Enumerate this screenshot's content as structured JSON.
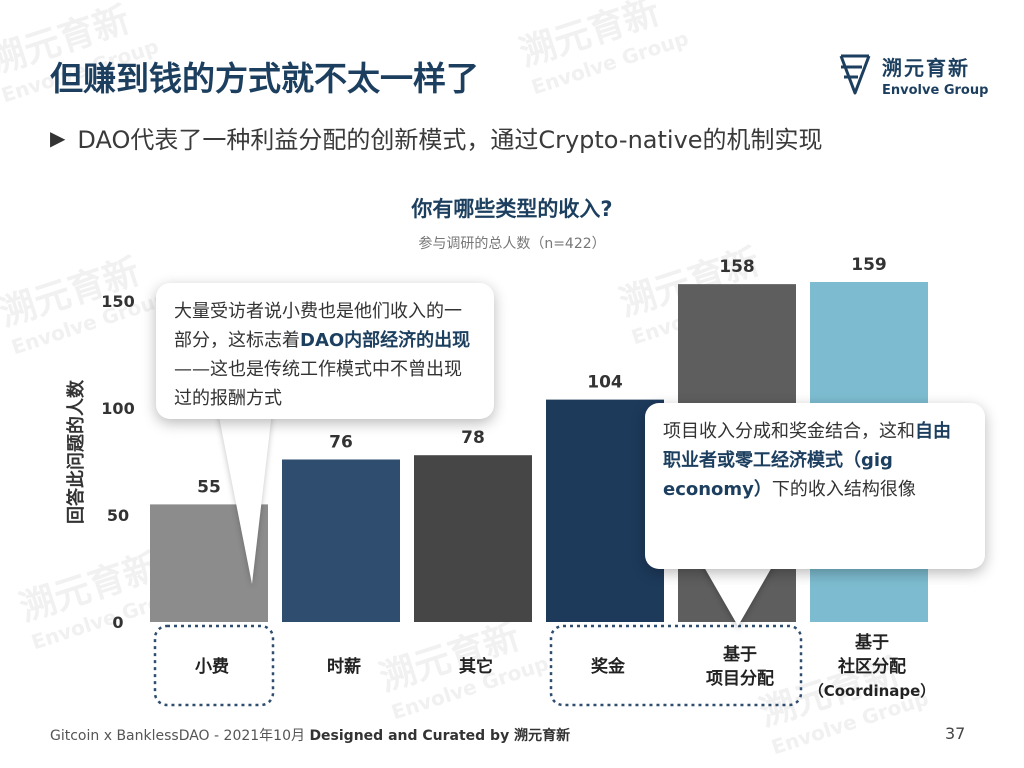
{
  "slide": {
    "title": "但赚到钱的方式就不太一样了",
    "subtitle": "DAO代表了一种利益分配的创新模式，通过Crypto-native的机制实现",
    "page_number": "37"
  },
  "logo": {
    "cn": "溯元育新",
    "en": "Envolve Group",
    "color": "#1d3f5f"
  },
  "watermark": {
    "cn": "溯元育新",
    "en": "Envolve Group"
  },
  "callouts": [
    {
      "parts": [
        {
          "text": "大量受访者说小费也是他们收入的一部分，这标志着",
          "bold": false
        },
        {
          "text": "DAO内部经济的出现",
          "bold": true
        },
        {
          "text": "——这也是传统工作模式中不曾出现过的报酬方式",
          "bold": false
        }
      ]
    },
    {
      "parts": [
        {
          "text": "项目收入分成和奖金结合，这和",
          "bold": false
        },
        {
          "text": "自由职业者或零工经济模式（gig economy）",
          "bold": true
        },
        {
          "text": "下的收入结构很像",
          "bold": false
        }
      ]
    }
  ],
  "footer": {
    "prefix": "Gitcoin x BanklessDAO - 2021年10月 ",
    "bold": "Designed and Curated by 溯元育新"
  },
  "chart_data": {
    "type": "bar",
    "title": "你有哪些类型的收入?",
    "subtitle": "参与调研的总人数（n=422）",
    "ylabel": "回答此问题的人数",
    "ylim": [
      0,
      160
    ],
    "yticks": [
      0,
      50,
      100,
      150
    ],
    "grid": false,
    "categories": [
      [
        "小费"
      ],
      [
        "时薪"
      ],
      [
        "其它"
      ],
      [
        "奖金"
      ],
      [
        "基于",
        "项目分配"
      ],
      [
        "基于",
        "社区分配",
        "（Coordinape）"
      ]
    ],
    "values": [
      55,
      76,
      78,
      104,
      158,
      159
    ],
    "colors": [
      "#8c8c8c",
      "#2f4e6f",
      "#464646",
      "#1d3a5b",
      "#5e5e5e",
      "#7dbcd0"
    ],
    "highlight_groups": [
      [
        0,
        0
      ],
      [
        3,
        4
      ]
    ],
    "highlight_color": "#2f4e6f"
  }
}
